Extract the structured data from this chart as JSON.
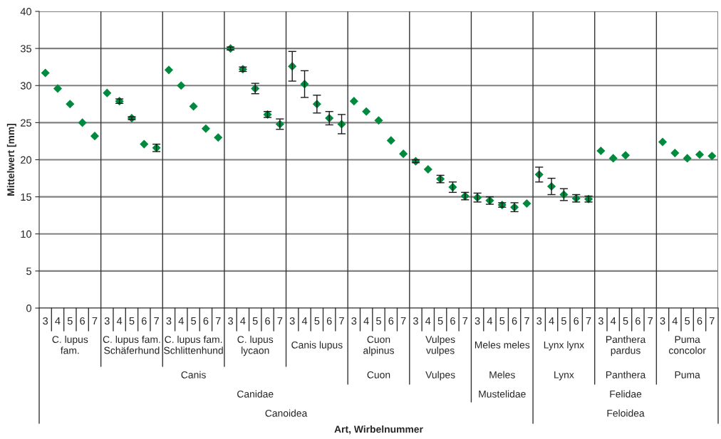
{
  "chart_data": {
    "type": "scatter",
    "ylabel": "Mittelwert [mm]",
    "categories": [
      "3",
      "4",
      "5",
      "6",
      "7",
      "3",
      "4",
      "5",
      "6",
      "7",
      "3",
      "4",
      "5",
      "6",
      "7",
      "3",
      "4",
      "5",
      "6",
      "7",
      "3",
      "4",
      "5",
      "6",
      "7",
      "3",
      "4",
      "5",
      "6",
      "7",
      "3",
      "4",
      "5",
      "6",
      "7",
      "3",
      "4",
      "5",
      "6",
      "7",
      "3",
      "4",
      "5",
      "6",
      "7",
      "3",
      "4",
      "5",
      "6",
      "7",
      "3",
      "4",
      "5",
      "6",
      "7"
    ],
    "series": [
      {
        "color": "#008a3e",
        "values": [
          31.7,
          29.6,
          27.5,
          25.0,
          23.2,
          29.0,
          27.9,
          25.6,
          22.1,
          21.6,
          32.1,
          30.0,
          27.2,
          24.2,
          23.0,
          35.0,
          32.2,
          29.6,
          26.1,
          24.8,
          32.6,
          30.2,
          27.5,
          25.6,
          24.8,
          27.9,
          26.5,
          25.3,
          22.6,
          20.8,
          19.8,
          18.7,
          17.4,
          16.3,
          15.1,
          14.9,
          14.5,
          13.9,
          13.6,
          14.1,
          18.0,
          16.4,
          15.3,
          14.8,
          14.7,
          21.2,
          20.2,
          20.6,
          null,
          null,
          22.4,
          20.9,
          20.2,
          20.7,
          20.5
        ],
        "errors": [
          null,
          null,
          null,
          null,
          null,
          null,
          0.3,
          0.2,
          null,
          0.5,
          null,
          null,
          null,
          null,
          null,
          0.2,
          0.3,
          0.7,
          0.4,
          0.7,
          2.0,
          1.8,
          1.2,
          0.9,
          1.3,
          null,
          null,
          null,
          null,
          null,
          0.2,
          null,
          0.5,
          0.7,
          0.5,
          0.6,
          0.5,
          0.3,
          0.6,
          null,
          1.0,
          1.1,
          0.8,
          0.5,
          0.4,
          null,
          null,
          null,
          null,
          null,
          null,
          null,
          null,
          null,
          null
        ]
      }
    ],
    "ylim": [
      0,
      40
    ],
    "yticks": [
      0,
      5,
      10,
      15,
      20,
      25,
      30,
      35,
      40
    ],
    "grid": "y",
    "marker": "diamond",
    "annotations": [
      "C. lupus\nfam.",
      "C. lupus fam.\nSchäferhund",
      "C. lupus fam.\nSchlittenhund",
      "C. lupus\nlycaon",
      "Canis lupus",
      "Cuon\nalpinus",
      "Vulpes\nvulpes",
      "Meles meles",
      "Lynx lynx",
      "Panthera\npardus",
      "Puma\nconcolor",
      "Canis",
      "Cuon",
      "Vulpes",
      "Meles",
      "Lynx",
      "Panthera",
      "Puma",
      "Canidae",
      "Mustelidae",
      "Felidae",
      "Canoidea",
      "Feloidea",
      "Art, Wirbelnummer"
    ]
  }
}
